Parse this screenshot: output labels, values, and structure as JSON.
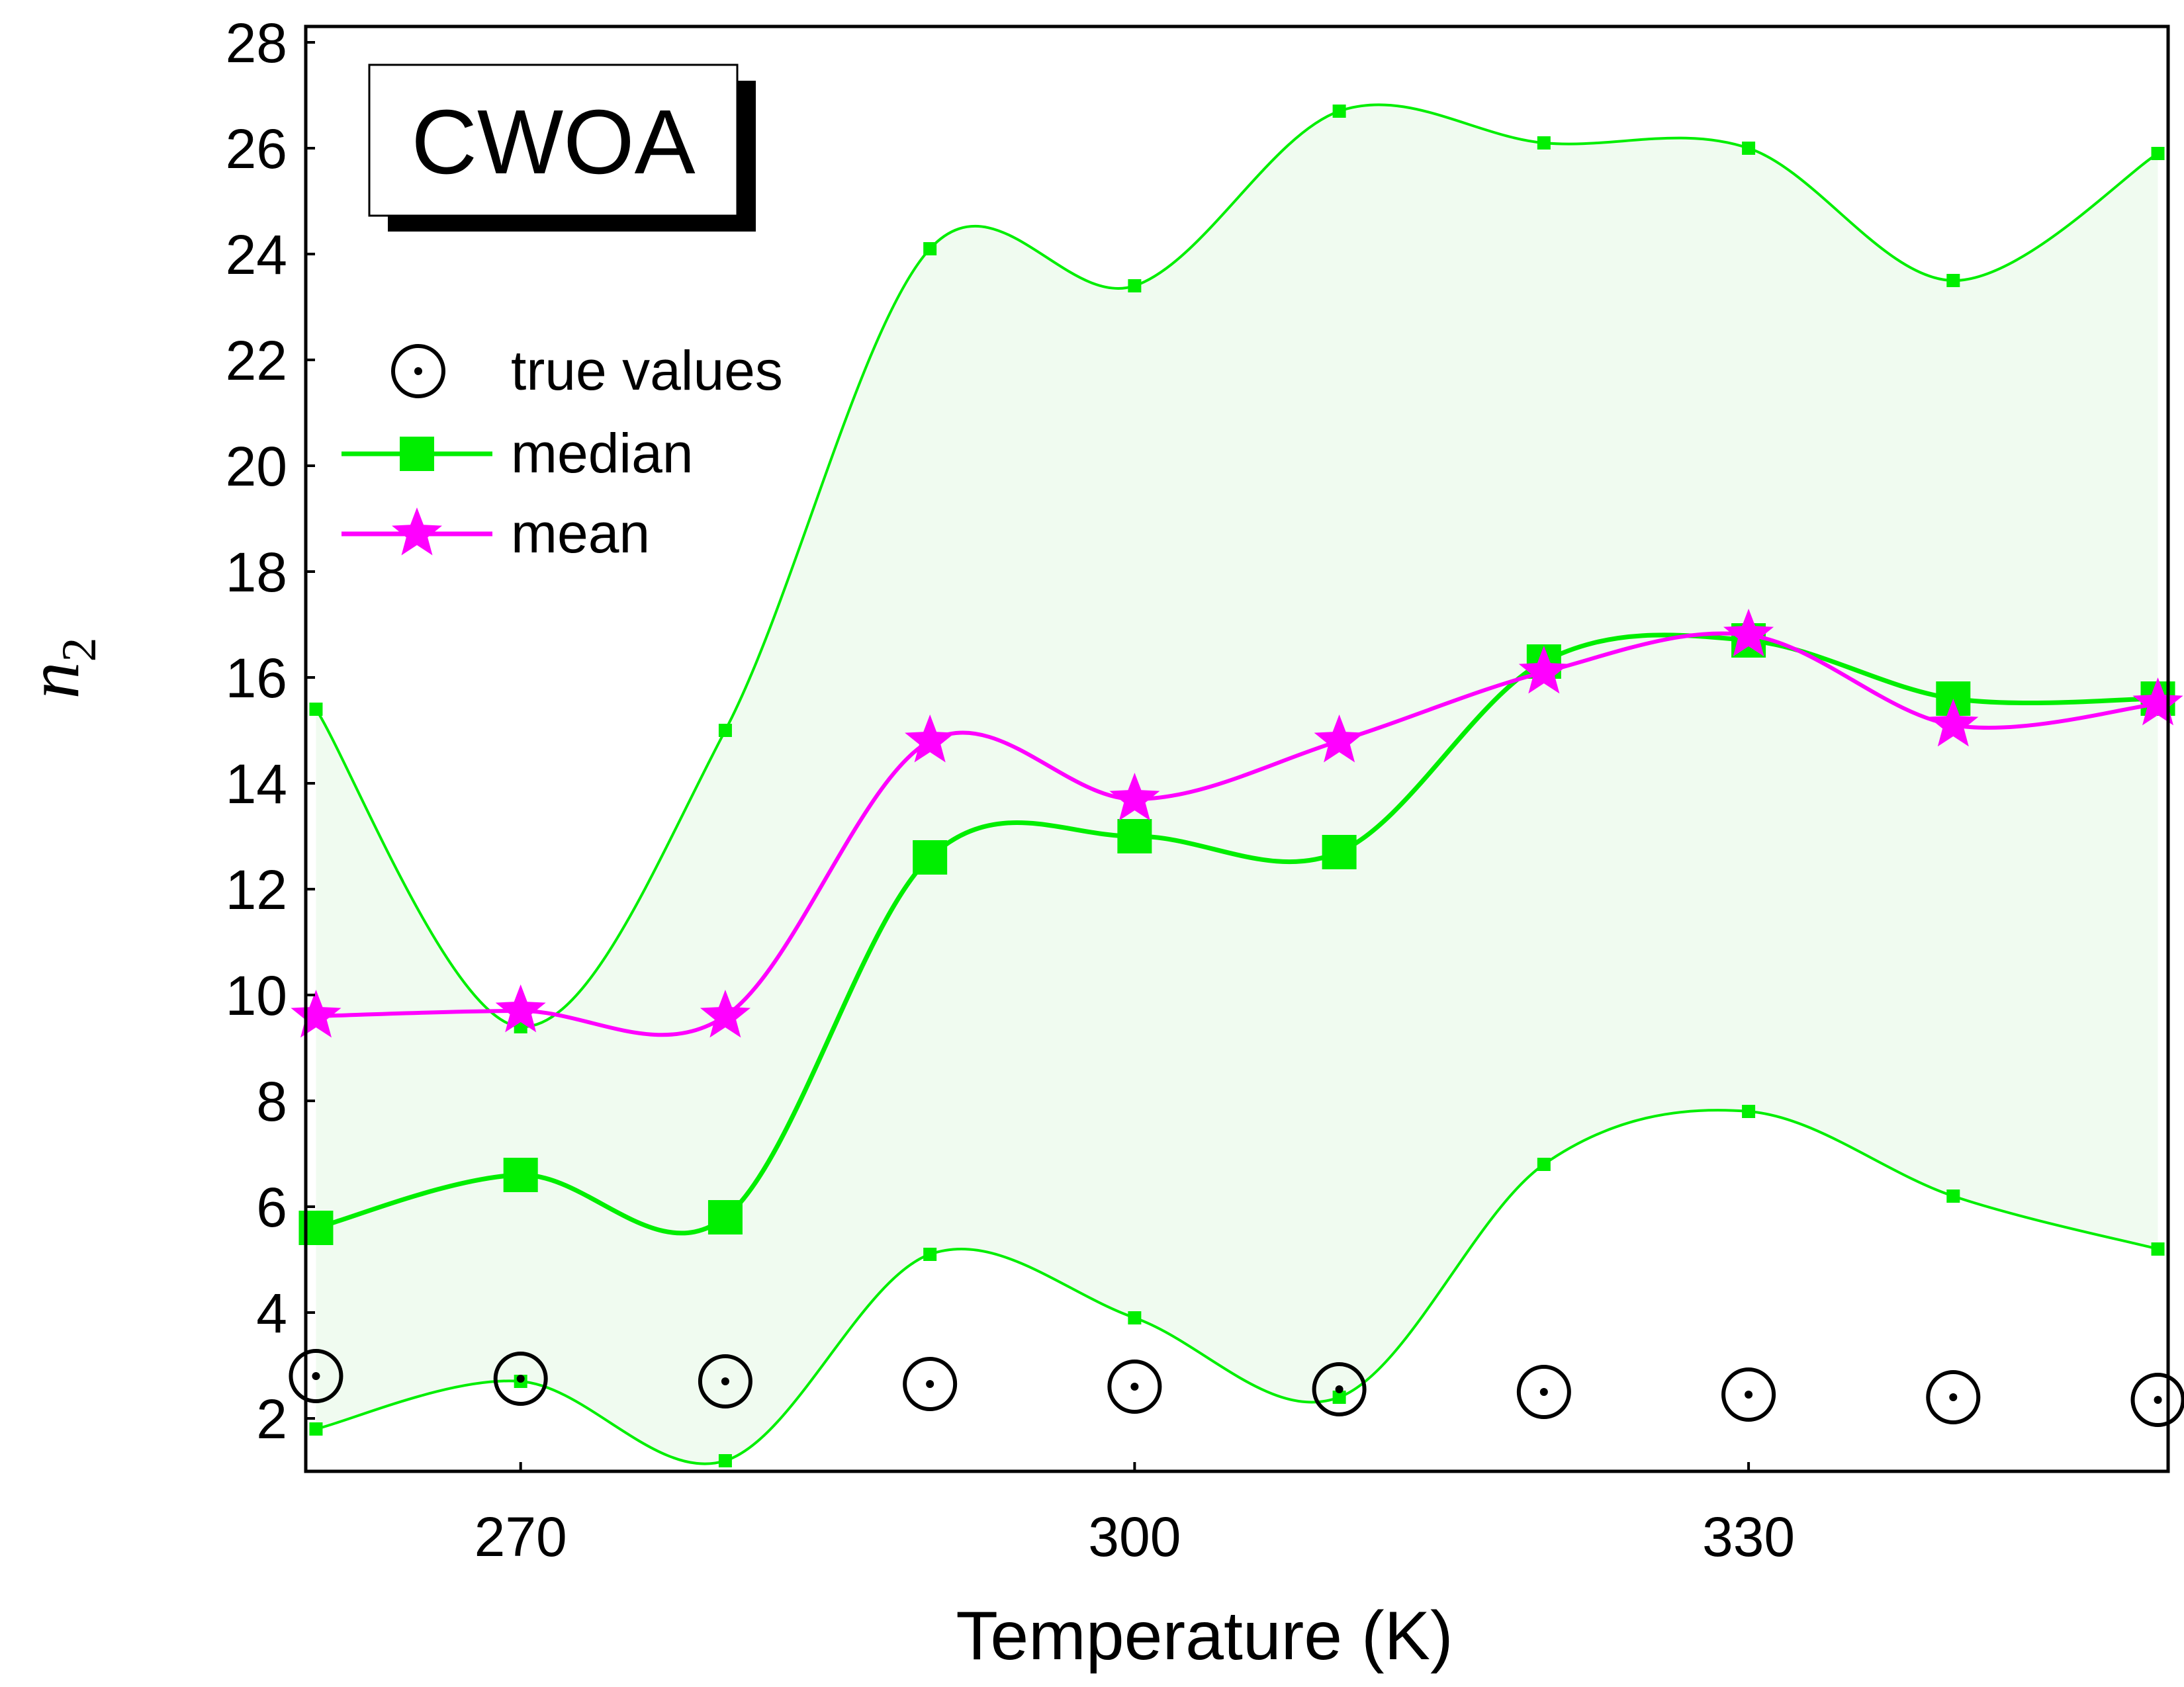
{
  "chart_data": {
    "type": "line",
    "panel_label": "CWOA",
    "xlabel": "Temperature (K)",
    "ylabel": {
      "main": "n",
      "subscript": "2"
    },
    "xlim": [
      259.5,
      350.5
    ],
    "ylim": [
      1,
      28.3
    ],
    "xticks": [
      270,
      300,
      330
    ],
    "yticks": [
      2,
      4,
      6,
      8,
      10,
      12,
      14,
      16,
      18,
      20,
      22,
      24,
      26,
      28
    ],
    "x": [
      260,
      270,
      280,
      290,
      300,
      310,
      320,
      330,
      340,
      350
    ],
    "series": [
      {
        "name": "true values",
        "marker": "circle-dot",
        "color": "#000000",
        "values": [
          2.8,
          2.75,
          2.7,
          2.65,
          2.6,
          2.55,
          2.5,
          2.45,
          2.4,
          2.35
        ]
      },
      {
        "name": "median",
        "marker": "square",
        "color": "#00ee00",
        "values": [
          5.6,
          6.6,
          5.8,
          12.6,
          13.0,
          12.7,
          16.3,
          16.7,
          15.6,
          15.6
        ]
      },
      {
        "name": "mean",
        "marker": "star",
        "color": "#ff00ff",
        "values": [
          9.6,
          9.7,
          9.6,
          14.8,
          13.7,
          14.8,
          16.1,
          16.8,
          15.1,
          15.5
        ]
      }
    ],
    "band": {
      "color": "#00ee00",
      "fill": "#f0fbf0",
      "upper": [
        15.4,
        9.4,
        15.0,
        24.1,
        23.4,
        26.7,
        26.1,
        26.0,
        23.5,
        25.9
      ],
      "lower": [
        1.8,
        2.7,
        1.2,
        5.1,
        3.9,
        2.4,
        6.8,
        7.8,
        6.2,
        5.2
      ]
    },
    "legend_position": "top-left",
    "grid": false
  }
}
